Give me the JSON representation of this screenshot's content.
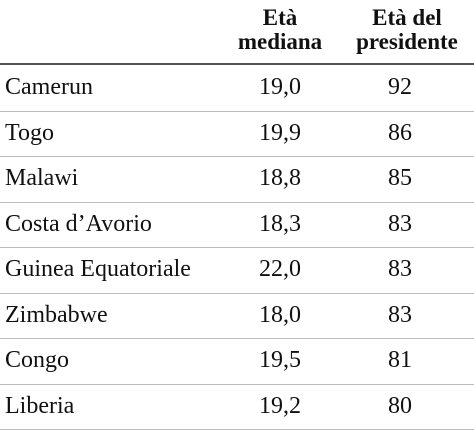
{
  "table": {
    "columns": [
      [],
      [
        "Età",
        "mediana"
      ],
      [
        "Età del",
        "presidente"
      ]
    ],
    "rows": [
      [
        "Camerun",
        "19,0",
        "92"
      ],
      [
        "Togo",
        "19,9",
        "86"
      ],
      [
        "Malawi",
        "18,8",
        "85"
      ],
      [
        "Costa d’Avorio",
        "18,3",
        "83"
      ],
      [
        "Guinea Equatoriale",
        "22,0",
        "83"
      ],
      [
        "Zimbabwe",
        "18,0",
        "83"
      ],
      [
        "Congo",
        "19,5",
        "81"
      ],
      [
        "Liberia",
        "19,2",
        "80"
      ]
    ]
  }
}
